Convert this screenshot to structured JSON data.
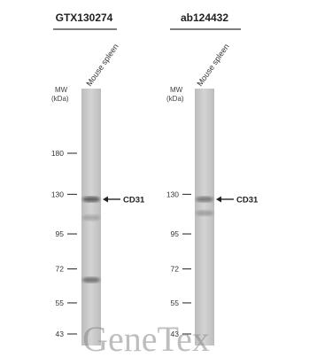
{
  "panels": [
    {
      "antibody": "GTX130274",
      "sample": "Mouse spleen",
      "mw_title": "MW",
      "mw_unit": "(kDa)",
      "markers": [
        {
          "label": "180",
          "kda": 180
        },
        {
          "label": "130",
          "kda": 130
        },
        {
          "label": "95",
          "kda": 95
        },
        {
          "label": "72",
          "kda": 72
        },
        {
          "label": "55",
          "kda": 55
        },
        {
          "label": "43",
          "kda": 43
        }
      ],
      "target": {
        "label": "CD31",
        "kda": 125
      },
      "bands": [
        {
          "kda": 125,
          "strength": 0.75
        },
        {
          "kda": 108,
          "strength": 0.25
        },
        {
          "kda": 66,
          "strength": 0.6
        }
      ]
    },
    {
      "antibody": "ab124432",
      "sample": "Mouse spleen",
      "mw_title": "MW",
      "mw_unit": "(kDa)",
      "markers": [
        {
          "label": "130",
          "kda": 130
        },
        {
          "label": "95",
          "kda": 95
        },
        {
          "label": "72",
          "kda": 72
        },
        {
          "label": "55",
          "kda": 55
        },
        {
          "label": "43",
          "kda": 43
        }
      ],
      "target": {
        "label": "CD31",
        "kda": 125
      },
      "bands": [
        {
          "kda": 125,
          "strength": 0.55
        },
        {
          "kda": 112,
          "strength": 0.3
        }
      ]
    }
  ],
  "watermark": "GeneTex",
  "colors": {
    "lane": "#c9c9c9",
    "band": "#3a3a3a",
    "line": "#333333"
  }
}
